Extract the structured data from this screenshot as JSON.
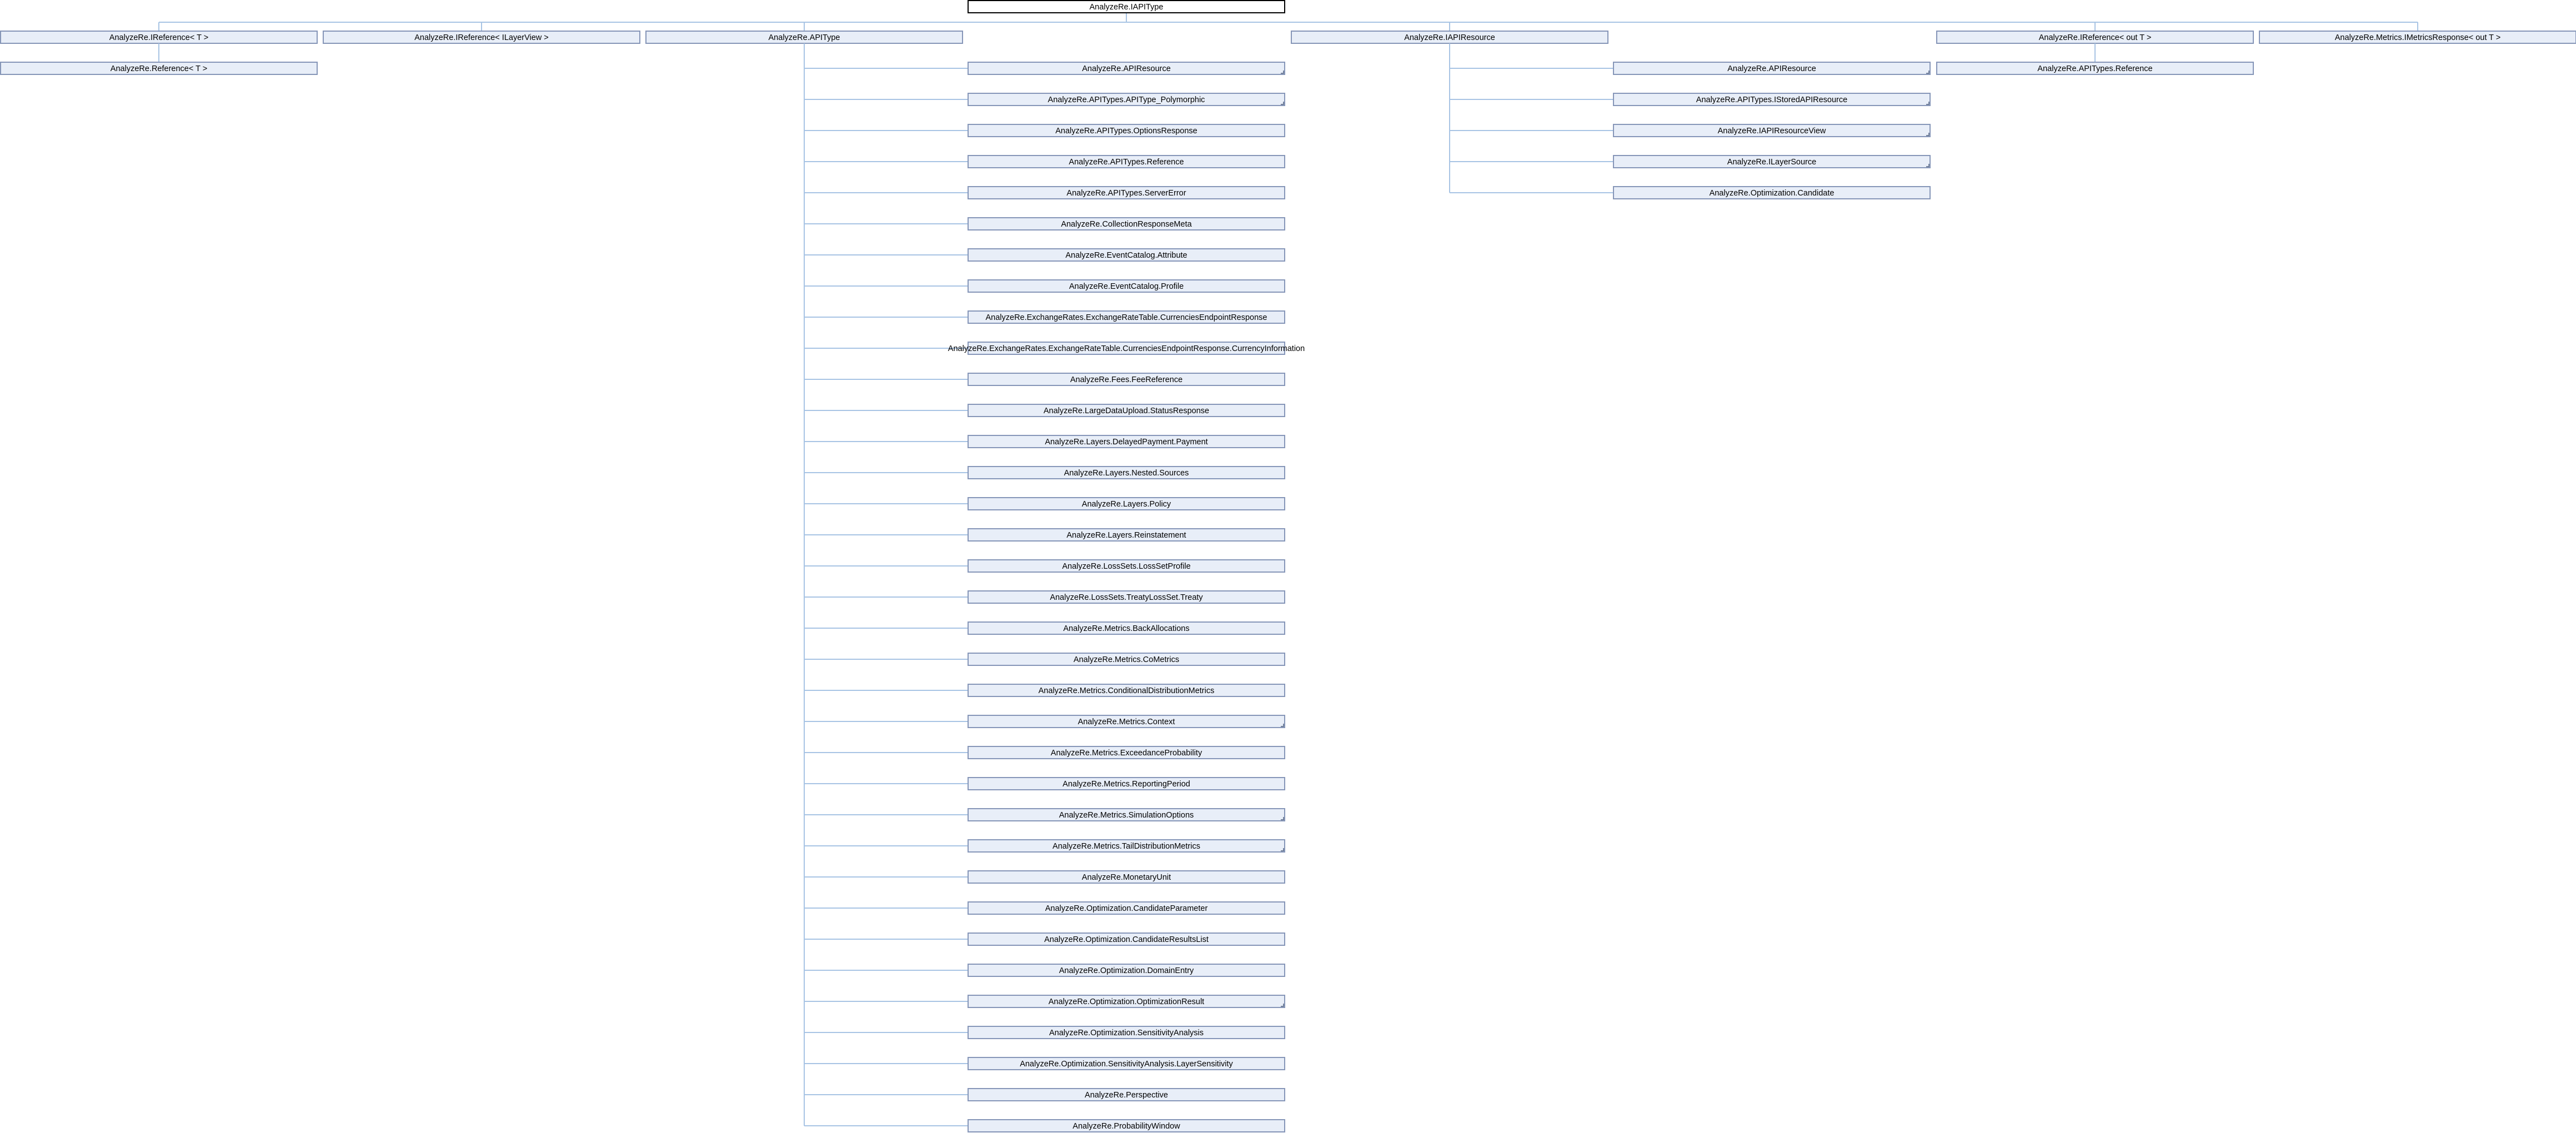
{
  "diagram": {
    "root": "AnalyzeRe.IAPIType",
    "level1": [
      {
        "label": "AnalyzeRe.IReference< T >",
        "children": [
          {
            "label": "AnalyzeRe.Reference< T >"
          }
        ]
      },
      {
        "label": "AnalyzeRe.IReference< ILayerView >",
        "children": []
      },
      {
        "label": "AnalyzeRe.APIType",
        "children": [
          {
            "label": "AnalyzeRe.APIResource",
            "more": true
          },
          {
            "label": "AnalyzeRe.APITypes.APIType_Polymorphic",
            "more": true
          },
          {
            "label": "AnalyzeRe.APITypes.OptionsResponse"
          },
          {
            "label": "AnalyzeRe.APITypes.Reference"
          },
          {
            "label": "AnalyzeRe.APITypes.ServerError"
          },
          {
            "label": "AnalyzeRe.CollectionResponseMeta"
          },
          {
            "label": "AnalyzeRe.EventCatalog.Attribute"
          },
          {
            "label": "AnalyzeRe.EventCatalog.Profile"
          },
          {
            "label": "AnalyzeRe.ExchangeRates.ExchangeRateTable.CurrenciesEndpointResponse"
          },
          {
            "label": "AnalyzeRe.ExchangeRates.ExchangeRateTable.CurrenciesEndpointResponse.CurrencyInformation"
          },
          {
            "label": "AnalyzeRe.Fees.FeeReference"
          },
          {
            "label": "AnalyzeRe.LargeDataUpload.StatusResponse"
          },
          {
            "label": "AnalyzeRe.Layers.DelayedPayment.Payment"
          },
          {
            "label": "AnalyzeRe.Layers.Nested.Sources"
          },
          {
            "label": "AnalyzeRe.Layers.Policy"
          },
          {
            "label": "AnalyzeRe.Layers.Reinstatement"
          },
          {
            "label": "AnalyzeRe.LossSets.LossSetProfile"
          },
          {
            "label": "AnalyzeRe.LossSets.TreatyLossSet.Treaty"
          },
          {
            "label": "AnalyzeRe.Metrics.BackAllocations"
          },
          {
            "label": "AnalyzeRe.Metrics.CoMetrics"
          },
          {
            "label": "AnalyzeRe.Metrics.ConditionalDistributionMetrics"
          },
          {
            "label": "AnalyzeRe.Metrics.Context",
            "more": true
          },
          {
            "label": "AnalyzeRe.Metrics.ExceedanceProbability"
          },
          {
            "label": "AnalyzeRe.Metrics.ReportingPeriod"
          },
          {
            "label": "AnalyzeRe.Metrics.SimulationOptions",
            "more": true
          },
          {
            "label": "AnalyzeRe.Metrics.TailDistributionMetrics",
            "more": true
          },
          {
            "label": "AnalyzeRe.MonetaryUnit"
          },
          {
            "label": "AnalyzeRe.Optimization.CandidateParameter"
          },
          {
            "label": "AnalyzeRe.Optimization.CandidateResultsList"
          },
          {
            "label": "AnalyzeRe.Optimization.DomainEntry"
          },
          {
            "label": "AnalyzeRe.Optimization.OptimizationResult",
            "more": true
          },
          {
            "label": "AnalyzeRe.Optimization.SensitivityAnalysis"
          },
          {
            "label": "AnalyzeRe.Optimization.SensitivityAnalysis.LayerSensitivity"
          },
          {
            "label": "AnalyzeRe.Perspective"
          },
          {
            "label": "AnalyzeRe.ProbabilityWindow"
          }
        ]
      },
      {
        "label": "AnalyzeRe.IAPIResource",
        "children": [
          {
            "label": "AnalyzeRe.APIResource",
            "more": true
          },
          {
            "label": "AnalyzeRe.APITypes.IStoredAPIResource",
            "more": true
          },
          {
            "label": "AnalyzeRe.IAPIResourceView",
            "more": true
          },
          {
            "label": "AnalyzeRe.ILayerSource",
            "more": true
          },
          {
            "label": "AnalyzeRe.Optimization.Candidate"
          }
        ]
      },
      {
        "label": "AnalyzeRe.IReference< out T >",
        "children": [
          {
            "label": "AnalyzeRe.APITypes.Reference"
          }
        ]
      },
      {
        "label": "AnalyzeRe.Metrics.IMetricsResponse< out T >",
        "children": []
      }
    ]
  },
  "colors": {
    "node_fill": "#e8eef8",
    "node_border": "#8696b8",
    "root_fill": "#ffffff",
    "root_border": "#000000",
    "edge": "#a8c4e4"
  }
}
